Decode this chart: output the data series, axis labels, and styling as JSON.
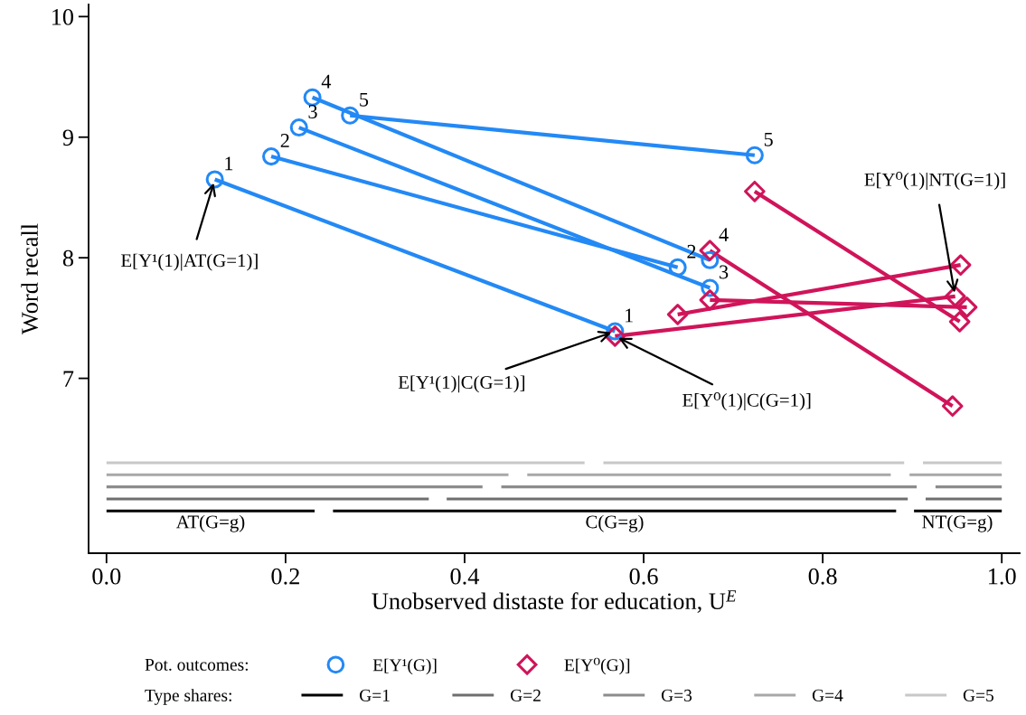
{
  "chart_data": {
    "type": "line",
    "xlabel": "Unobserved distaste for education, U$^{E}$",
    "ylabel": "Word recall",
    "xlim": [
      -0.02,
      1.02
    ],
    "ylim": [
      5.55,
      10.1
    ],
    "xticks": [
      {
        "value": 0,
        "label": "0.0"
      },
      {
        "value": 0.2,
        "label": "0.2"
      },
      {
        "value": 0.4,
        "label": "0.4"
      },
      {
        "value": 0.6,
        "label": "0.6"
      },
      {
        "value": 0.8,
        "label": "0.8"
      },
      {
        "value": 1,
        "label": "1.0"
      }
    ],
    "yticks": [
      7,
      8,
      9,
      10
    ],
    "grid": false,
    "legend": "bottom",
    "series": [
      {
        "color": "#2389f5",
        "marker": "none",
        "x": [
          0.121,
          0.568
        ],
        "values": [
          8.65,
          7.39
        ]
      },
      {
        "color": "#2389f5",
        "marker": "none",
        "x": [
          0.184,
          0.638
        ],
        "values": [
          8.84,
          7.92
        ]
      },
      {
        "color": "#2389f5",
        "marker": "none",
        "x": [
          0.215,
          0.674
        ],
        "values": [
          9.08,
          7.75
        ]
      },
      {
        "color": "#2389f5",
        "marker": "none",
        "x": [
          0.23,
          0.674
        ],
        "values": [
          9.33,
          7.98
        ]
      },
      {
        "color": "#2389f5",
        "marker": "none",
        "x": [
          0.272,
          0.724
        ],
        "values": [
          9.18,
          8.85
        ]
      },
      {
        "color": "#d0145a",
        "marker": "none",
        "x": [
          0.568,
          0.948
        ],
        "values": [
          7.35,
          7.68
        ]
      },
      {
        "color": "#d0145a",
        "marker": "none",
        "x": [
          0.638,
          0.954
        ],
        "values": [
          7.53,
          7.94
        ]
      },
      {
        "color": "#d0145a",
        "marker": "none",
        "x": [
          0.674,
          0.961
        ],
        "values": [
          7.65,
          7.59
        ]
      },
      {
        "color": "#d0145a",
        "marker": "none",
        "x": [
          0.674,
          0.945
        ],
        "values": [
          8.06,
          6.77
        ]
      },
      {
        "color": "#d0145a",
        "marker": "none",
        "x": [
          0.724,
          0.953
        ],
        "values": [
          8.55,
          7.47
        ]
      },
      {
        "type": "scatter",
        "name": "E[Y¹(G)]",
        "color": "#2389f5",
        "marker": "circle",
        "x": [
          0.121,
          0.184,
          0.215,
          0.23,
          0.272,
          0.568,
          0.638,
          0.674,
          0.674,
          0.724
        ],
        "values": [
          8.65,
          8.84,
          9.08,
          9.33,
          9.18,
          7.39,
          7.92,
          7.75,
          7.98,
          8.85
        ]
      },
      {
        "type": "scatter",
        "name": "E[Y⁰(G)]",
        "color": "#d0145a",
        "marker": "diamond",
        "x": [
          0.568,
          0.638,
          0.674,
          0.674,
          0.724,
          0.948,
          0.954,
          0.961,
          0.945,
          0.953
        ],
        "values": [
          7.35,
          7.53,
          7.65,
          8.06,
          8.55,
          7.68,
          7.94,
          7.59,
          6.77,
          7.47
        ]
      },
      {
        "name": "G=1",
        "color": "#000000",
        "marker": "none",
        "x": [
          0,
          0.2325,
          0.243,
          0.253,
          0.882,
          0.892,
          0.902,
          1.0
        ],
        "values": [
          5.9,
          5.9,
          null,
          5.9,
          5.9,
          null,
          5.9,
          5.9
        ]
      },
      {
        "name": "G=2",
        "color": "#6e6e6e",
        "marker": "none",
        "x": [
          0,
          0.36,
          0.37,
          0.38,
          0.895,
          0.905,
          0.915,
          1.0
        ],
        "values": [
          6.0,
          6.0,
          null,
          6.0,
          6.0,
          null,
          6.0,
          6.0
        ]
      },
      {
        "name": "G=3",
        "color": "#8c8c8c",
        "marker": "none",
        "x": [
          0,
          0.42,
          0.43,
          0.441,
          0.905,
          0.915,
          0.926,
          1.0
        ],
        "values": [
          6.1,
          6.1,
          null,
          6.1,
          6.1,
          null,
          6.1,
          6.1
        ]
      },
      {
        "name": "G=4",
        "color": "#a8a8a8",
        "marker": "none",
        "x": [
          0,
          0.449,
          0.46,
          0.47,
          0.876,
          0.886,
          0.897,
          1.0
        ],
        "values": [
          6.2,
          6.2,
          null,
          6.2,
          6.2,
          null,
          6.2,
          6.2
        ]
      },
      {
        "name": "G=5",
        "color": "#c8c8c8",
        "marker": "none",
        "x": [
          0,
          0.534,
          0.545,
          0.555,
          0.891,
          0.901,
          0.912,
          1.0
        ],
        "values": [
          6.3,
          6.3,
          null,
          6.3,
          6.3,
          null,
          6.3,
          6.3
        ]
      }
    ],
    "annotations": [
      {
        "text": "1",
        "x": 0.121,
        "y": 8.65
      },
      {
        "text": "2",
        "x": 0.184,
        "y": 8.84
      },
      {
        "text": "3",
        "x": 0.215,
        "y": 9.08
      },
      {
        "text": "4",
        "x": 0.23,
        "y": 9.33
      },
      {
        "text": "5",
        "x": 0.272,
        "y": 9.18
      },
      {
        "text": "1",
        "x": 0.568,
        "y": 7.39
      },
      {
        "text": "2",
        "x": 0.638,
        "y": 7.92
      },
      {
        "text": "3",
        "x": 0.674,
        "y": 7.75
      },
      {
        "text": "4",
        "x": 0.674,
        "y": 8.06
      },
      {
        "text": "5",
        "x": 0.724,
        "y": 8.85
      },
      {
        "text": "E[Y¹(1)|AT(G=1)]",
        "x": 0.121,
        "y": 8.65
      },
      {
        "text": "E[Y¹(1)|C(G=1)]",
        "x": 0.568,
        "y": 7.39
      },
      {
        "text": "E[Y⁰(1)|C(G=1)]",
        "x": 0.568,
        "y": 7.35
      },
      {
        "text": "E[Y⁰(1)|NT(G=1)]",
        "x": 0.948,
        "y": 7.68
      },
      "AT(G=g)",
      "C(G=g)",
      "NT(G=g)",
      "Pot. outcomes:",
      "Type shares:"
    ]
  }
}
